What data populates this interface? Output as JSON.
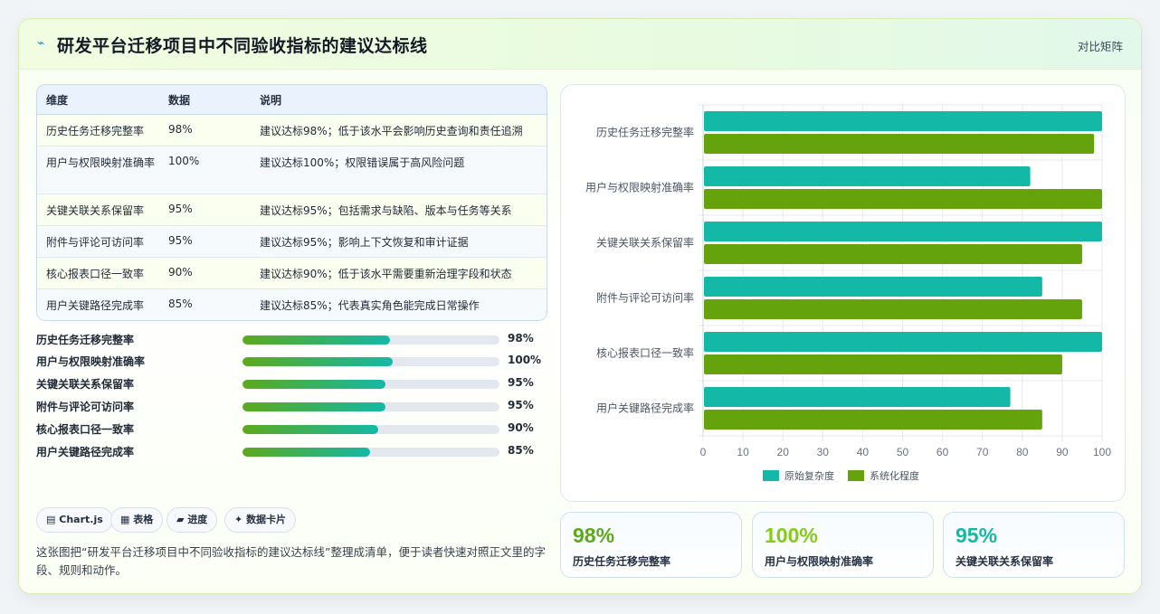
{
  "header": {
    "title": "研发平台迁移项目中不同验收指标的建议达标线",
    "right_label": "对比矩阵"
  },
  "table": {
    "columns": [
      "维度",
      "数据",
      "说明"
    ],
    "rows": [
      {
        "dim": "历史任务迁移完整率",
        "value": "98%",
        "note": "建议达标98%；低于该水平会影响历史查询和责任追溯"
      },
      {
        "dim": "用户与权限映射准确率",
        "value": "100%",
        "note": "建议达标100%；权限错误属于高风险问题"
      },
      {
        "dim": "关键关联关系保留率",
        "value": "95%",
        "note": "建议达标95%；包括需求与缺陷、版本与任务等关系"
      },
      {
        "dim": "附件与评论可访问率",
        "value": "95%",
        "note": "建议达标95%；影响上下文恢复和审计证据"
      },
      {
        "dim": "核心报表口径一致率",
        "value": "90%",
        "note": "建议达标90%；低于该水平需要重新治理字段和状态"
      },
      {
        "dim": "用户关键路径完成率",
        "value": "85%",
        "note": "建议达标85%；代表真实角色能完成日常操作"
      }
    ]
  },
  "progress": [
    {
      "label": "历史任务迁移完整率",
      "pct": "98%",
      "fraction": 0.98
    },
    {
      "label": "用户与权限映射准确率",
      "pct": "100%",
      "fraction": 1.0
    },
    {
      "label": "关键关联关系保留率",
      "pct": "95%",
      "fraction": 0.95
    },
    {
      "label": "附件与评论可访问率",
      "pct": "95%",
      "fraction": 0.95
    },
    {
      "label": "核心报表口径一致率",
      "pct": "90%",
      "fraction": 0.9
    },
    {
      "label": "用户关键路径完成率",
      "pct": "85%",
      "fraction": 0.85
    }
  ],
  "tags": [
    {
      "icon": "chart-icon",
      "glyph": "▤",
      "label": "Chart.js"
    },
    {
      "icon": "table-icon",
      "glyph": "▦",
      "label": "表格"
    },
    {
      "icon": "progress-icon",
      "glyph": "▰",
      "label": "进度"
    },
    {
      "icon": "sparkle-icon",
      "glyph": "✦",
      "label": "数据卡片"
    }
  ],
  "description": "这张图把“研发平台迁移项目中不同验收指标的建议达标线”整理成清单，便于读者快速对照正文里的字段、规则和动作。",
  "stats": [
    {
      "value": "98%",
      "label": "历史任务迁移完整率",
      "color": "#5ca91c"
    },
    {
      "value": "100%",
      "label": "用户与权限映射准确率",
      "color": "#84cc16"
    },
    {
      "value": "95%",
      "label": "关键关联关系保留率",
      "color": "#14b8a6"
    }
  ],
  "chart_data": {
    "type": "bar",
    "orientation": "horizontal",
    "categories": [
      "历史任务迁移完整率",
      "用户与权限映射准确率",
      "关键关联关系保留率",
      "附件与评论可访问率",
      "核心报表口径一致率",
      "用户关键路径完成率"
    ],
    "series": [
      {
        "name": "原始复杂度",
        "color": "#14b8a6",
        "values": [
          100,
          82,
          100,
          85,
          100,
          77
        ]
      },
      {
        "name": "系统化程度",
        "color": "#65a30d",
        "values": [
          98,
          100,
          95,
          95,
          90,
          85
        ]
      }
    ],
    "xlim": [
      0,
      100
    ],
    "xticks": [
      0,
      10,
      20,
      30,
      40,
      50,
      60,
      70,
      80,
      90,
      100
    ],
    "grid": true,
    "legend": "bottom"
  }
}
